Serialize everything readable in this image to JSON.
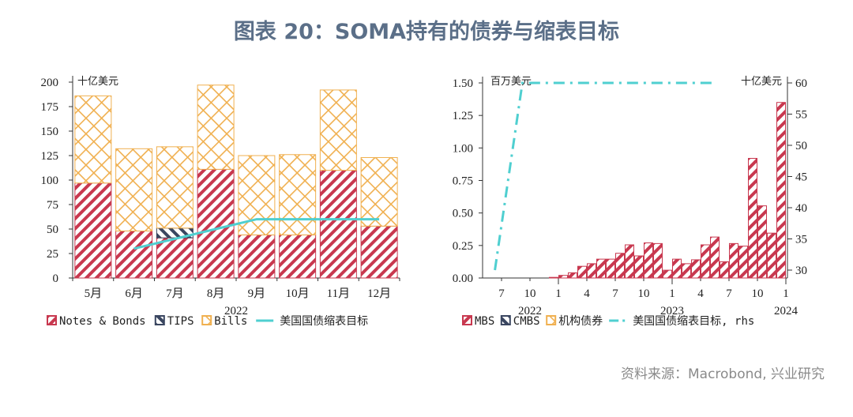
{
  "title": "图表 20：SOMA持有的债券与缩表目标",
  "source": "资料来源：Macrobond, 兴业研究",
  "colors": {
    "red": "#c8384f",
    "orange": "#f0b050",
    "navy": "#3a4660",
    "cyan": "#4fcfd0"
  },
  "chart_data": [
    {
      "type": "bar",
      "stacked": true,
      "unit": "十亿美元",
      "categories": [
        "5月",
        "6月",
        "7月",
        "8月",
        "9月",
        "10月",
        "11月",
        "12月"
      ],
      "year_label": "2022",
      "ylim": [
        0,
        200
      ],
      "yticks": [
        0,
        25,
        50,
        75,
        100,
        125,
        150,
        175,
        200
      ],
      "series": [
        {
          "name": "Notes & Bonds",
          "values": [
            97,
            48,
            41,
            111,
            44,
            44,
            110,
            53
          ]
        },
        {
          "name": "TIPS",
          "values": [
            0,
            0,
            10,
            0,
            0,
            0,
            0,
            0
          ]
        },
        {
          "name": "Bills",
          "values": [
            89,
            84,
            83,
            86,
            81,
            82,
            82,
            70
          ]
        }
      ],
      "line": {
        "name": "美国国债缩表目标",
        "x": [
          1,
          2,
          3,
          4,
          5,
          6,
          7
        ],
        "values": [
          30,
          40,
          50,
          60,
          60,
          60,
          60
        ]
      }
    },
    {
      "type": "bar",
      "unit_left": "百万美元",
      "unit_right": "十亿美元",
      "ylim": [
        0,
        1.5
      ],
      "yticks": [
        "0.00",
        "0.25",
        "0.50",
        "0.75",
        "1.00",
        "1.25",
        "1.50"
      ],
      "y2lim": [
        30,
        60
      ],
      "y2ticks": [
        30,
        35,
        40,
        45,
        50,
        55,
        60
      ],
      "xticks": [
        "7",
        "10",
        "1",
        "4",
        "7",
        "10",
        "1",
        "4",
        "7",
        "10",
        "1"
      ],
      "years": [
        "2022",
        "2023",
        "2024"
      ],
      "bar_months": "2022-12 to 2024-12",
      "series": [
        {
          "name": "MBS",
          "values": [
            0.005,
            0.02,
            0.04,
            0.09,
            0.11,
            0.145,
            0.145,
            0.19,
            0.255,
            0.17,
            0.27,
            0.265,
            0.06,
            0.145,
            0.11,
            0.14,
            0.255,
            0.315,
            0.125,
            0.265,
            0.245,
            0.92,
            0.555,
            0.345,
            1.35
          ]
        },
        {
          "name": "CMBS",
          "values": []
        },
        {
          "name": "机构债券",
          "values": []
        }
      ],
      "line": {
        "name": "美国国债缩表目标, rhs",
        "months_from_2022_05": [
          1.3,
          4.2,
          24.5
        ],
        "values": [
          30,
          60,
          60
        ]
      }
    }
  ]
}
